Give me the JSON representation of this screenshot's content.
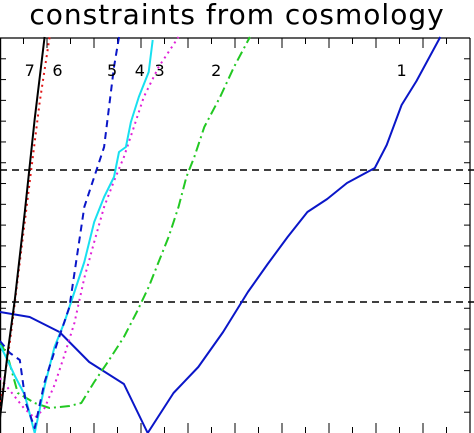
{
  "chart_data": {
    "type": "line",
    "title": "constraints from cosmology",
    "xlabel": "",
    "ylabel": "",
    "xlim": [
      0,
      474
    ],
    "ylim": [
      0,
      395
    ],
    "grid": false,
    "reference_lines": [
      {
        "y": 263,
        "style": "dashed",
        "color": "#000000"
      },
      {
        "y": 131,
        "style": "dashed",
        "color": "#000000"
      }
    ],
    "series": [
      {
        "name": "1",
        "color": "#0a16c8",
        "dash": "solid",
        "width": 2,
        "points": [
          [
            0,
            121
          ],
          [
            30,
            116
          ],
          [
            60,
            101
          ],
          [
            90,
            71
          ],
          [
            125,
            49
          ],
          [
            149,
            0
          ],
          [
            175,
            40
          ],
          [
            200,
            66
          ],
          [
            225,
            101
          ],
          [
            250,
            141
          ],
          [
            270,
            169
          ],
          [
            290,
            196
          ],
          [
            310,
            221
          ],
          [
            330,
            234
          ],
          [
            350,
            250
          ],
          [
            378,
            265
          ],
          [
            390,
            288
          ],
          [
            405,
            328
          ],
          [
            420,
            352
          ],
          [
            444,
            396
          ]
        ]
      },
      {
        "name": "2",
        "color": "#22c822",
        "dash": "dash-dot",
        "width": 2,
        "points": [
          [
            0,
            91
          ],
          [
            8,
            76
          ],
          [
            18,
            40
          ],
          [
            35,
            30
          ],
          [
            50,
            25
          ],
          [
            70,
            27
          ],
          [
            82,
            30
          ],
          [
            95,
            51
          ],
          [
            110,
            73
          ],
          [
            125,
            96
          ],
          [
            138,
            121
          ],
          [
            150,
            146
          ],
          [
            160,
            171
          ],
          [
            170,
            196
          ],
          [
            180,
            226
          ],
          [
            188,
            256
          ],
          [
            196,
            276
          ],
          [
            206,
            306
          ],
          [
            222,
            336
          ],
          [
            236,
            366
          ],
          [
            252,
            396
          ]
        ]
      },
      {
        "name": "3",
        "color": "#e020d8",
        "dash": "dotted",
        "width": 2,
        "points": [
          [
            0,
            55
          ],
          [
            12,
            40
          ],
          [
            24,
            25
          ],
          [
            35,
            15
          ],
          [
            45,
            25
          ],
          [
            55,
            48
          ],
          [
            65,
            78
          ],
          [
            75,
            110
          ],
          [
            85,
            155
          ],
          [
            95,
            191
          ],
          [
            105,
            226
          ],
          [
            115,
            252
          ],
          [
            125,
            276
          ],
          [
            135,
            306
          ],
          [
            145,
            336
          ],
          [
            160,
            366
          ],
          [
            180,
            396
          ]
        ]
      },
      {
        "name": "4",
        "color": "#18e0f0",
        "dash": "solid",
        "width": 2,
        "points": [
          [
            0,
            88
          ],
          [
            8,
            72
          ],
          [
            15,
            57
          ],
          [
            25,
            38
          ],
          [
            35,
            0
          ],
          [
            45,
            47
          ],
          [
            55,
            86
          ],
          [
            65,
            111
          ],
          [
            75,
            141
          ],
          [
            85,
            171
          ],
          [
            95,
            211
          ],
          [
            105,
            236
          ],
          [
            115,
            256
          ],
          [
            120,
            281
          ],
          [
            127,
            286
          ],
          [
            132,
            311
          ],
          [
            140,
            336
          ],
          [
            150,
            361
          ],
          [
            154,
            393
          ]
        ]
      },
      {
        "name": "5",
        "color": "#0a16c8",
        "dash": "dashed",
        "width": 2,
        "points": [
          [
            0,
            92
          ],
          [
            10,
            80
          ],
          [
            20,
            73
          ],
          [
            26,
            30
          ],
          [
            35,
            5
          ],
          [
            45,
            51
          ],
          [
            58,
            91
          ],
          [
            70,
            126
          ],
          [
            85,
            226
          ],
          [
            95,
            256
          ],
          [
            105,
            286
          ],
          [
            115,
            366
          ],
          [
            120,
            396
          ]
        ]
      },
      {
        "name": "6",
        "color": "#e01818",
        "dash": "dotted",
        "width": 2,
        "points": [
          [
            0,
            25
          ],
          [
            10,
            91
          ],
          [
            15,
            131
          ],
          [
            20,
            171
          ],
          [
            30,
            251
          ],
          [
            40,
            331
          ],
          [
            50,
            396
          ]
        ]
      },
      {
        "name": "7",
        "color": "#000000",
        "dash": "solid",
        "width": 2,
        "points": [
          [
            0,
            15
          ],
          [
            8,
            82
          ],
          [
            15,
            134
          ],
          [
            25,
            221
          ],
          [
            35,
            314
          ],
          [
            45,
            396
          ]
        ]
      }
    ],
    "labels": [
      {
        "text": "1",
        "x": 405,
        "y": 357
      },
      {
        "text": "2",
        "x": 218,
        "y": 357
      },
      {
        "text": "3",
        "x": 161,
        "y": 357
      },
      {
        "text": "4",
        "x": 141,
        "y": 357
      },
      {
        "text": "5",
        "x": 113,
        "y": 357
      },
      {
        "text": "6",
        "x": 58,
        "y": 357
      },
      {
        "text": "7",
        "x": 30,
        "y": 357
      }
    ]
  }
}
